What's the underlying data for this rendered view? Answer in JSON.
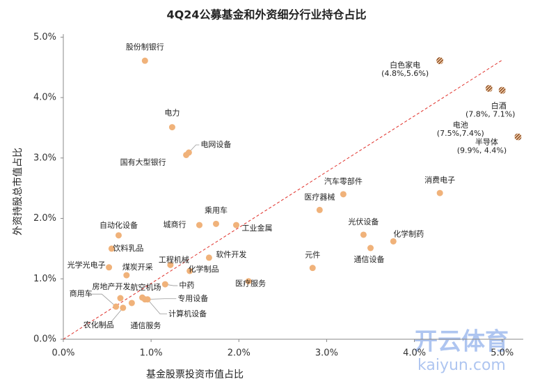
{
  "chart_data": {
    "type": "scatter",
    "title": "4Q24公募基金和外资细分行业持仓占比",
    "x_label": "基金股票投资市值占比",
    "y_label": "外资持股总市值占比",
    "xlim": [
      0,
      5.24
    ],
    "ylim": [
      0,
      5.05
    ],
    "xticks": [
      {
        "value": 0,
        "label": "0.0%"
      },
      {
        "value": 1,
        "label": "1.0%"
      },
      {
        "value": 2,
        "label": "2.0%"
      },
      {
        "value": 3,
        "label": "3.0%"
      },
      {
        "value": 4,
        "label": "4.0%"
      },
      {
        "value": 5,
        "label": "5.0%"
      }
    ],
    "yticks": [
      {
        "value": 0,
        "label": "0.0%"
      },
      {
        "value": 1,
        "label": "1.0%"
      },
      {
        "value": 2,
        "label": "2.0%"
      },
      {
        "value": 3,
        "label": "3.0%"
      },
      {
        "value": 4,
        "label": "4.0%"
      },
      {
        "value": 5,
        "label": "5.0%"
      }
    ],
    "color": "#f0b27a",
    "points": [
      {
        "label": "股份制银行",
        "x": 0.93,
        "y": 4.61
      },
      {
        "label": "电力",
        "x": 1.24,
        "y": 3.51
      },
      {
        "label": "电网设备",
        "x": 1.43,
        "y": 3.09
      },
      {
        "label": "国有大型银行",
        "x": 1.4,
        "y": 3.05
      },
      {
        "label": "汽车零部件",
        "x": 3.19,
        "y": 2.4
      },
      {
        "label": "消费电子",
        "x": 4.29,
        "y": 2.42
      },
      {
        "label": "医疗器械",
        "x": 2.92,
        "y": 2.14
      },
      {
        "label": "乘用车",
        "x": 1.74,
        "y": 1.91
      },
      {
        "label": "城商行",
        "x": 1.55,
        "y": 1.89
      },
      {
        "label": "工业金属",
        "x": 1.97,
        "y": 1.89
      },
      {
        "label": "光伏设备",
        "x": 3.42,
        "y": 1.73
      },
      {
        "label": "化学制药",
        "x": 3.76,
        "y": 1.62
      },
      {
        "label": "通信设备",
        "x": 3.5,
        "y": 1.51
      },
      {
        "label": "自动化设备",
        "x": 0.63,
        "y": 1.72
      },
      {
        "label": "饮料乳品",
        "x": 0.55,
        "y": 1.5
      },
      {
        "label": "软件开发",
        "x": 1.66,
        "y": 1.35
      },
      {
        "label": "工程机械",
        "x": 1.22,
        "y": 1.23
      },
      {
        "label": "化学制品",
        "x": 1.44,
        "y": 1.13
      },
      {
        "label": "光学光电子",
        "x": 0.52,
        "y": 1.19
      },
      {
        "label": "煤炭开采",
        "x": 0.72,
        "y": 1.06
      },
      {
        "label": "元件",
        "x": 2.84,
        "y": 1.18
      },
      {
        "label": "医疗服务",
        "x": 2.11,
        "y": 0.96
      },
      {
        "label": "中药",
        "x": 1.16,
        "y": 0.91
      },
      {
        "label": "房地产开发",
        "x": 0.65,
        "y": 0.68
      },
      {
        "label": "航空机场",
        "x": 0.9,
        "y": 0.69
      },
      {
        "label": "专用设备",
        "x": 0.93,
        "y": 0.66
      },
      {
        "label": "商用车",
        "x": 0.6,
        "y": 0.54
      },
      {
        "label": "农化制品",
        "x": 0.68,
        "y": 0.52
      },
      {
        "label": "通信服务",
        "x": 0.78,
        "y": 0.6
      },
      {
        "label": "计算机设备",
        "x": 0.96,
        "y": 0.66
      }
    ],
    "outliers": [
      {
        "label": "白色家电",
        "annotation": "(4.8%,5.6%)",
        "x": 4.29,
        "y": 4.61
      },
      {
        "label": "白酒",
        "annotation": "(7.8%, 7.1%)",
        "x": 5.0,
        "y": 4.12
      },
      {
        "label": "电池",
        "annotation": "(7.5%,7.4%)",
        "x": 4.85,
        "y": 4.15
      },
      {
        "label": "半导体",
        "annotation": "(9.9%, 4.4%)",
        "x": 5.18,
        "y": 3.35
      }
    ],
    "reference_line": {
      "x": [
        0,
        5
      ],
      "y": [
        0,
        4.62
      ]
    },
    "watermark": [
      "开云体育",
      "kaiyun.com"
    ]
  }
}
